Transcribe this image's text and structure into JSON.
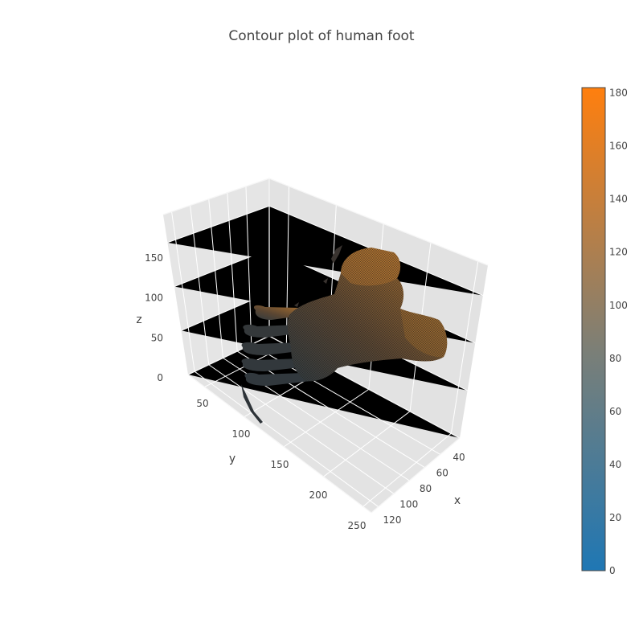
{
  "chart_data": {
    "type": "isosurface-3d",
    "title": "Contour plot of human foot",
    "axes": {
      "x": {
        "label": "x",
        "ticks": [
          40,
          60,
          80,
          100,
          120
        ]
      },
      "y": {
        "label": "y",
        "ticks": [
          50,
          100,
          150,
          200,
          250
        ]
      },
      "z": {
        "label": "z",
        "ticks": [
          0,
          50,
          100,
          150
        ]
      }
    },
    "colorbar": {
      "range": [
        0,
        182
      ],
      "ticks": [
        0,
        20,
        40,
        60,
        80,
        100,
        120,
        140,
        160,
        180
      ],
      "colorscale": [
        "#1f77b4",
        "#ff7f0e"
      ]
    },
    "surface_color": "#8a5a2b",
    "grid": true,
    "scene_background": "#e5e5e5"
  }
}
